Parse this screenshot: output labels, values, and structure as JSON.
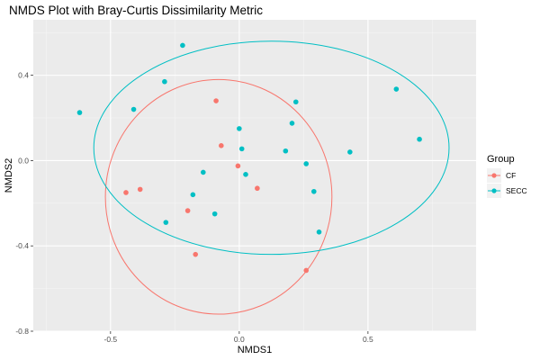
{
  "chart_data": {
    "type": "scatter",
    "title": "NMDS Plot with Bray-Curtis Dissimilarity Metric",
    "xlabel": "NMDS1",
    "ylabel": "NMDS2",
    "xlim": [
      -0.8,
      0.92
    ],
    "ylim": [
      -0.8,
      0.66
    ],
    "x_ticks": [
      -0.5,
      0.0,
      0.5
    ],
    "x_tick_labels": [
      "-0.5",
      "0.0",
      "0.5"
    ],
    "y_ticks": [
      -0.8,
      -0.4,
      0.0,
      0.4
    ],
    "y_tick_labels": [
      "-0.8",
      "-0.4",
      "0.0",
      "0.4"
    ],
    "grid": true,
    "legend": {
      "title": "Group",
      "placement": "right"
    },
    "series": [
      {
        "name": "CF",
        "color": "#F8766D",
        "points": [
          [
            -0.09,
            0.28
          ],
          [
            -0.07,
            0.07
          ],
          [
            -0.005,
            -0.025
          ],
          [
            0.07,
            -0.13
          ],
          [
            -0.44,
            -0.15
          ],
          [
            -0.385,
            -0.135
          ],
          [
            -0.2,
            -0.235
          ],
          [
            -0.17,
            -0.44
          ],
          [
            0.26,
            -0.515
          ]
        ],
        "ellipse": {
          "center": [
            -0.08,
            -0.17
          ],
          "semi_axes": [
            0.44,
            0.55
          ],
          "rotation_deg": 0
        }
      },
      {
        "name": "SECC",
        "color": "#00BFC4",
        "points": [
          [
            -0.22,
            0.54
          ],
          [
            -0.29,
            0.37
          ],
          [
            -0.41,
            0.24
          ],
          [
            -0.62,
            0.225
          ],
          [
            0.0,
            0.15
          ],
          [
            0.01,
            0.055
          ],
          [
            0.025,
            -0.065
          ],
          [
            -0.14,
            -0.055
          ],
          [
            -0.18,
            -0.16
          ],
          [
            -0.285,
            -0.29
          ],
          [
            -0.095,
            -0.25
          ],
          [
            0.22,
            0.275
          ],
          [
            0.205,
            0.175
          ],
          [
            0.18,
            0.045
          ],
          [
            0.26,
            -0.015
          ],
          [
            0.29,
            -0.145
          ],
          [
            0.31,
            -0.335
          ],
          [
            0.43,
            0.04
          ],
          [
            0.61,
            0.335
          ],
          [
            0.7,
            0.1
          ]
        ],
        "ellipse": {
          "center": [
            0.125,
            0.06
          ],
          "semi_axes": [
            0.69,
            0.5
          ],
          "rotation_deg": 0
        }
      }
    ]
  }
}
